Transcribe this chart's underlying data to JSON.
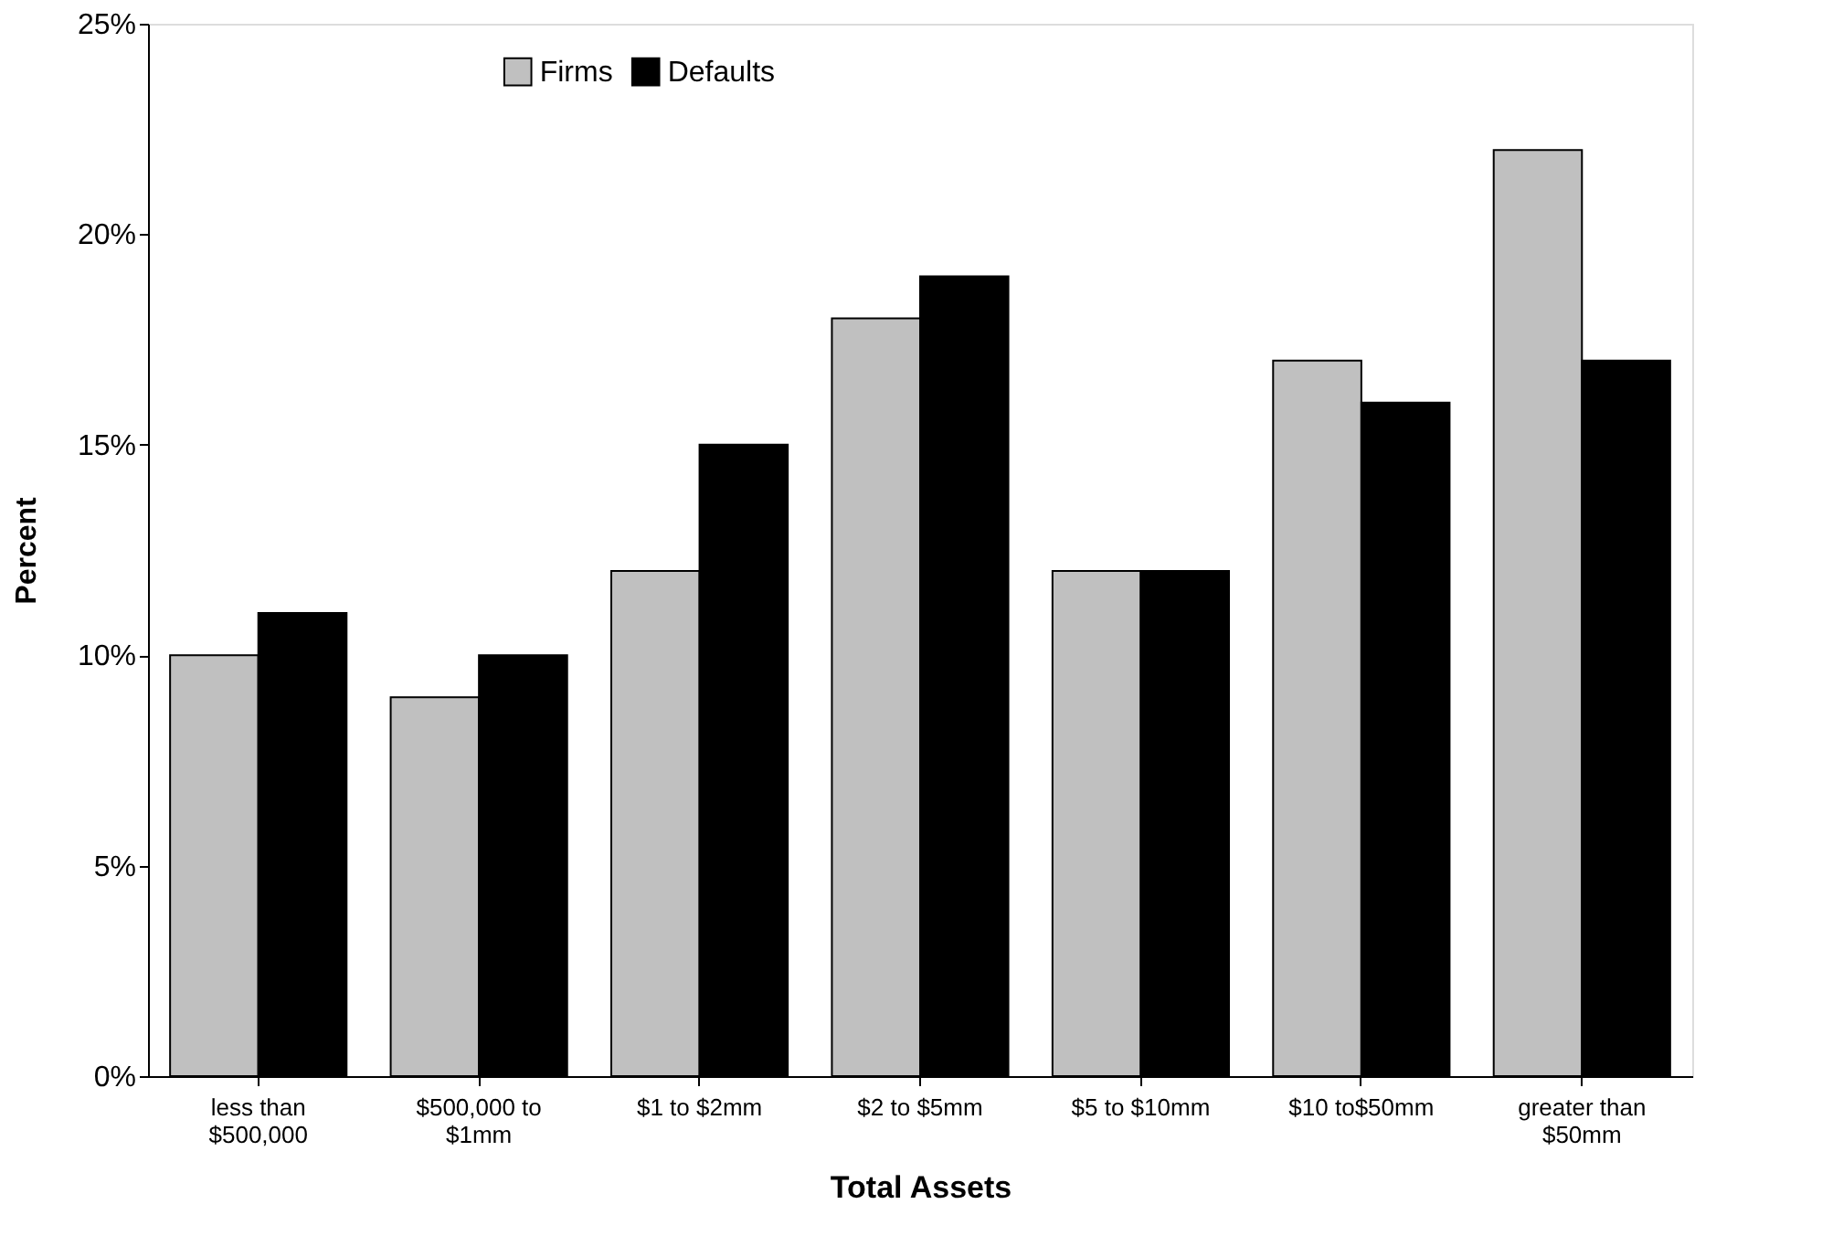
{
  "chart_data": {
    "type": "bar",
    "xlabel": "Total Assets",
    "ylabel": "Percent",
    "categories": [
      "less than\n$500,000",
      "$500,000 to\n$1mm",
      "$1 to $2mm",
      "$2 to $5mm",
      "$5 to $10mm",
      "$10 to$50mm",
      "greater than\n$50mm"
    ],
    "series": [
      {
        "name": "Firms",
        "color": "#c0c0c0",
        "values": [
          10,
          9,
          12,
          18,
          12,
          17,
          22
        ]
      },
      {
        "name": "Defaults",
        "color": "#000000",
        "values": [
          11,
          10,
          15,
          19,
          12,
          16,
          17
        ]
      }
    ],
    "ylim": [
      0,
      25
    ],
    "yticks": [
      {
        "value": 0,
        "label": "0%"
      },
      {
        "value": 5,
        "label": "5%"
      },
      {
        "value": 10,
        "label": "10%"
      },
      {
        "value": 15,
        "label": "15%"
      },
      {
        "value": 20,
        "label": "20%"
      },
      {
        "value": 25,
        "label": "25%"
      }
    ],
    "grid": false,
    "legend": "top"
  }
}
